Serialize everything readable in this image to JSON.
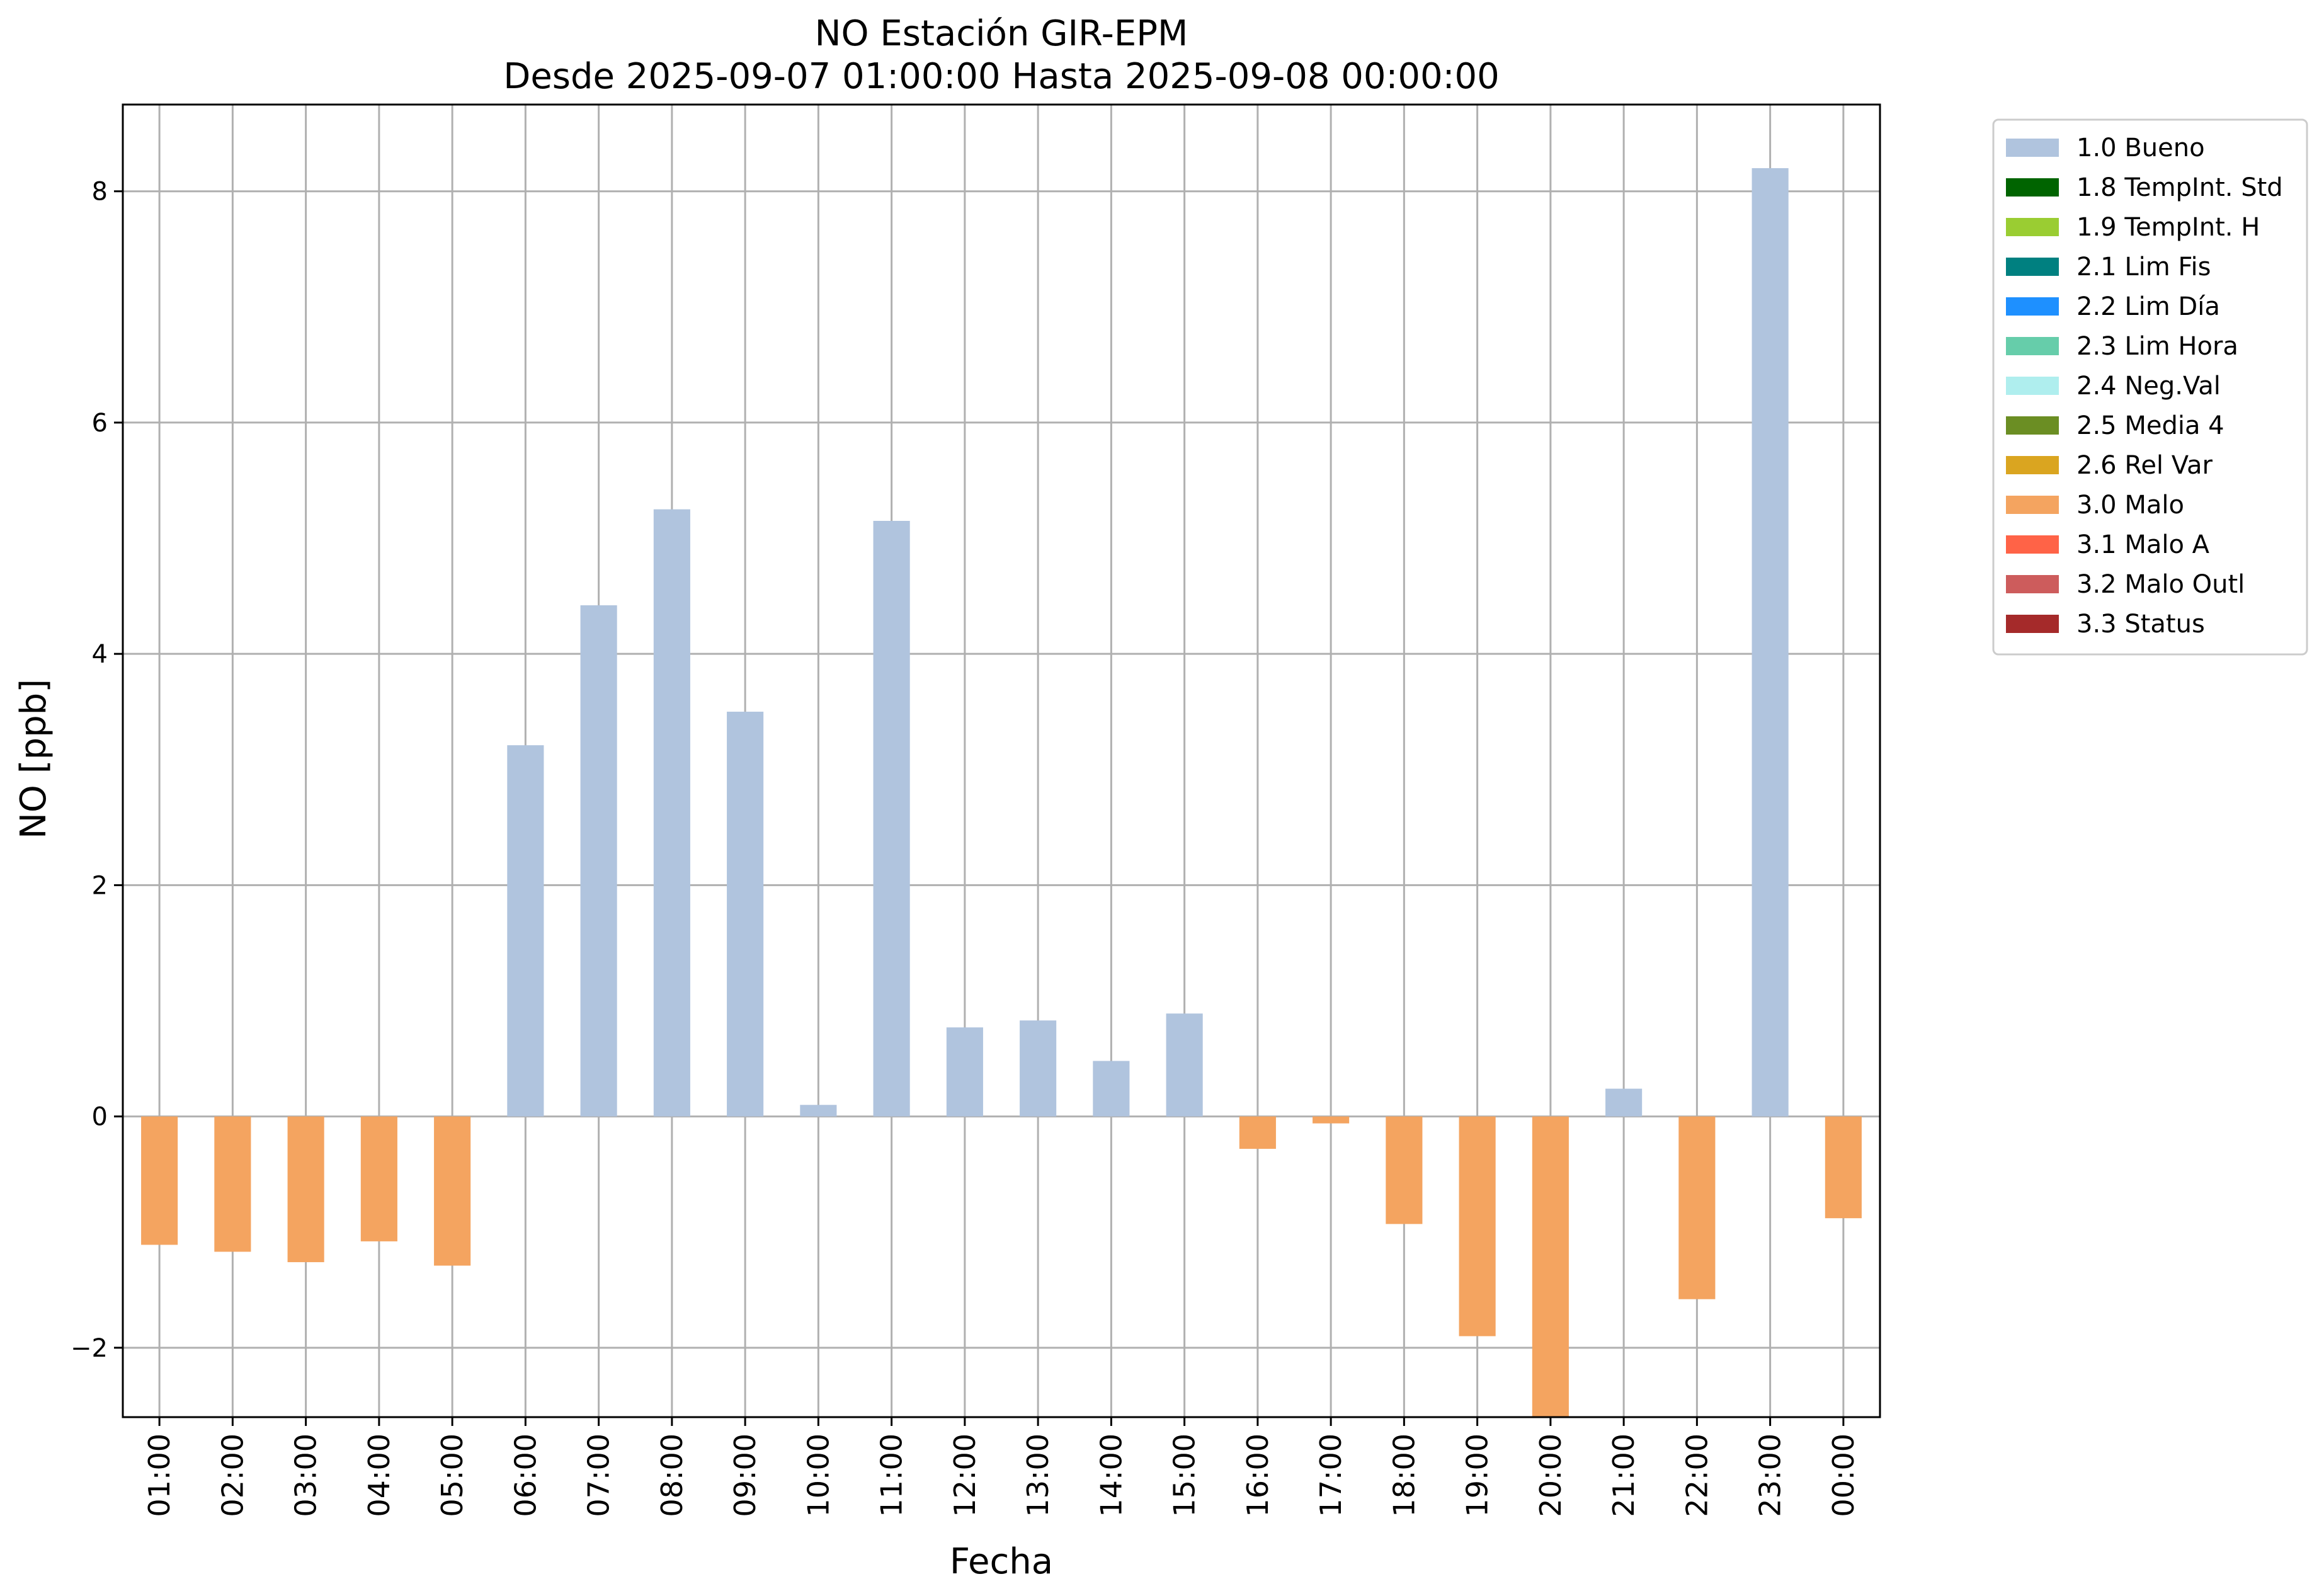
{
  "chart_data": {
    "type": "bar",
    "title": "NO Estación GIR-EPM",
    "subtitle": "Desde 2025-09-07 01:00:00 Hasta 2025-09-08 00:00:00",
    "xlabel": "Fecha",
    "ylabel": "NO [ppb]",
    "ylim": [
      -2.6,
      8.75
    ],
    "yticks": [
      -2,
      0,
      2,
      4,
      6,
      8
    ],
    "ytick_labels": [
      "−2",
      "0",
      "2",
      "4",
      "6",
      "8"
    ],
    "grid": true,
    "legend_position": "outside-top-right",
    "categories": [
      "01:00",
      "02:00",
      "03:00",
      "04:00",
      "05:00",
      "06:00",
      "07:00",
      "08:00",
      "09:00",
      "10:00",
      "11:00",
      "12:00",
      "13:00",
      "14:00",
      "15:00",
      "16:00",
      "17:00",
      "18:00",
      "19:00",
      "20:00",
      "21:00",
      "22:00",
      "23:00",
      "00:00"
    ],
    "values": [
      -1.11,
      -1.17,
      -1.26,
      -1.08,
      -1.29,
      3.21,
      4.42,
      5.25,
      3.5,
      0.1,
      5.15,
      0.77,
      0.83,
      0.48,
      0.89,
      -0.28,
      -0.06,
      -0.93,
      -1.9,
      -2.62,
      0.24,
      -1.58,
      8.2,
      -0.88
    ],
    "flags": [
      "3.0 Malo",
      "3.0 Malo",
      "3.0 Malo",
      "3.0 Malo",
      "3.0 Malo",
      "1.0 Bueno",
      "1.0 Bueno",
      "1.0 Bueno",
      "1.0 Bueno",
      "1.0 Bueno",
      "1.0 Bueno",
      "1.0 Bueno",
      "1.0 Bueno",
      "1.0 Bueno",
      "1.0 Bueno",
      "3.0 Malo",
      "3.0 Malo",
      "3.0 Malo",
      "3.0 Malo",
      "3.0 Malo",
      "1.0 Bueno",
      "3.0 Malo",
      "1.0 Bueno",
      "3.0 Malo"
    ],
    "legend": [
      {
        "name": "1.0 Bueno",
        "color": "#b0c4de"
      },
      {
        "name": "1.8 TempInt. Std",
        "color": "#006400"
      },
      {
        "name": "1.9 TempInt. H",
        "color": "#9acd32"
      },
      {
        "name": "2.1 Lim Fis",
        "color": "#008080"
      },
      {
        "name": "2.2 Lim Día",
        "color": "#1e90ff"
      },
      {
        "name": "2.3 Lim Hora",
        "color": "#66cdaa"
      },
      {
        "name": "2.4 Neg.Val",
        "color": "#afeeee"
      },
      {
        "name": "2.5 Media 4",
        "color": "#6b8e23"
      },
      {
        "name": "2.6 Rel Var",
        "color": "#daa520"
      },
      {
        "name": "3.0 Malo",
        "color": "#f4a460"
      },
      {
        "name": "3.1 Malo A",
        "color": "#ff6347"
      },
      {
        "name": "3.2 Malo Outl",
        "color": "#cd5c5c"
      },
      {
        "name": "3.3 Status",
        "color": "#a52a2a"
      }
    ],
    "colors": {
      "grid": "#b0b0b0",
      "axes": "#000000"
    }
  }
}
